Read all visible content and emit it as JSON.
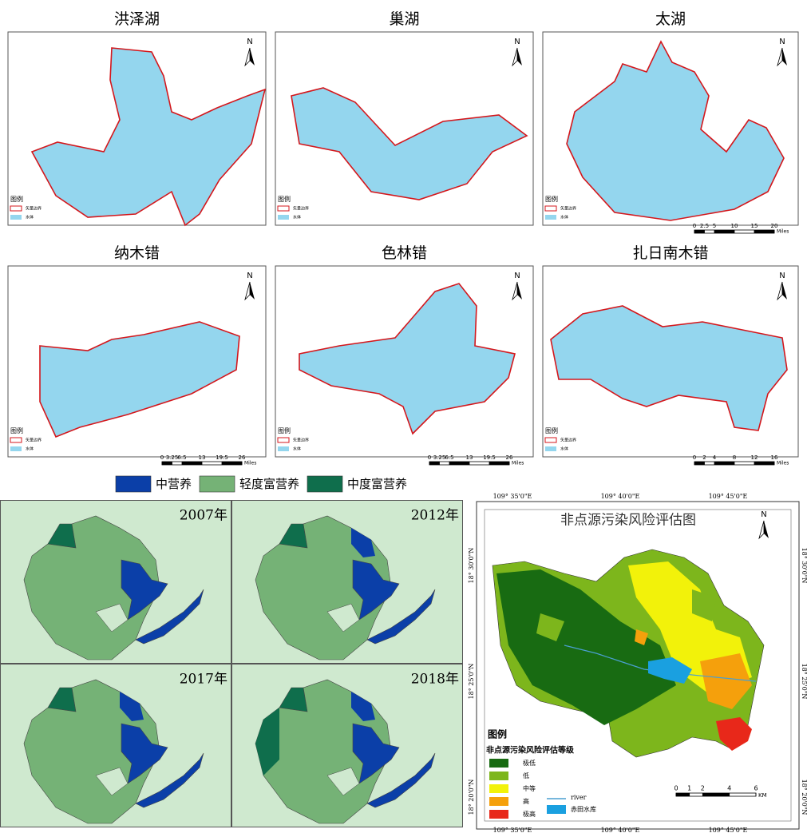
{
  "lake_panels": [
    {
      "title": "洪泽湖",
      "north": "N",
      "legend_title": "图例",
      "legend_items": [
        "矢量边界",
        "水体"
      ]
    },
    {
      "title": "巢湖",
      "north": "N",
      "legend_title": "图例",
      "legend_items": [
        "矢量边界",
        "水体"
      ]
    },
    {
      "title": "太湖",
      "north": "N",
      "legend_title": "图例",
      "legend_items": [
        "矢量边界",
        "水体"
      ],
      "scale": {
        "ticks": [
          0,
          2.5,
          5,
          10,
          15,
          20
        ],
        "unit": "Miles"
      }
    },
    {
      "title": "纳木错",
      "north": "N",
      "legend_title": "图例",
      "legend_items": [
        "矢量边界",
        "水体"
      ],
      "scale": {
        "ticks": [
          0,
          3.25,
          6.5,
          13,
          19.5,
          26
        ],
        "unit": "Miles"
      }
    },
    {
      "title": "色林错",
      "north": "N",
      "legend_title": "图例",
      "legend_items": [
        "矢量边界",
        "水体"
      ],
      "scale": {
        "ticks": [
          0,
          3.25,
          6.5,
          13,
          19.5,
          26
        ],
        "unit": "Miles"
      }
    },
    {
      "title": "扎日南木错",
      "north": "N",
      "legend_title": "图例",
      "legend_items": [
        "矢量边界",
        "水体"
      ],
      "scale": {
        "ticks": [
          0,
          2,
          4,
          8,
          12,
          16
        ],
        "unit": "Miles"
      }
    }
  ],
  "trophic_legend": [
    {
      "label": "中营养",
      "color": "#0b3fa8"
    },
    {
      "label": "轻度富营养",
      "color": "#75b276"
    },
    {
      "label": "中度富营养",
      "color": "#0f6e4c"
    }
  ],
  "trophic_panels": [
    "2007年",
    "2012年",
    "2017年",
    "2018年"
  ],
  "risk_map": {
    "title": "非点源污染风险评估图",
    "north": "N",
    "lon_labels": [
      "109° 35'0\"E",
      "109° 40'0\"E",
      "109° 45'0\"E"
    ],
    "lat_labels": [
      "18° 30'0\"N",
      "18° 25'0\"N",
      "18° 20'0\"N"
    ],
    "legend_title": "图例",
    "legend_subtitle": "非点源污染风险评估等级",
    "classes": [
      {
        "label": "极低",
        "color": "#186b12"
      },
      {
        "label": "低",
        "color": "#7db61c"
      },
      {
        "label": "中等",
        "color": "#f2f20a"
      },
      {
        "label": "高",
        "color": "#f5a00c"
      },
      {
        "label": "极高",
        "color": "#e8281a"
      }
    ],
    "river": {
      "label": "river",
      "color": "#4a9fd0"
    },
    "reservoir": {
      "label": "赤田水库",
      "color": "#1aa0e0"
    },
    "scale": {
      "ticks": [
        0,
        1,
        2,
        4,
        6
      ],
      "unit": "KM"
    }
  }
}
